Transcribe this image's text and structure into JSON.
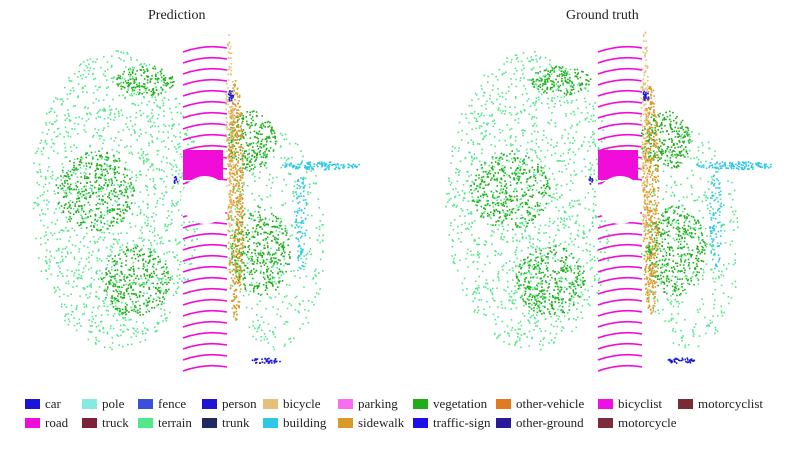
{
  "titles": {
    "left": "Prediction",
    "right": "Ground truth"
  },
  "legend": [
    {
      "label": "car",
      "color": "#1a13d9"
    },
    {
      "label": "pole",
      "color": "#85ebe0"
    },
    {
      "label": "fence",
      "color": "#3a4fdc"
    },
    {
      "label": "person",
      "color": "#1e14d2"
    },
    {
      "label": "bicycle",
      "color": "#e6c07a"
    },
    {
      "label": "parking",
      "color": "#f86ef0"
    },
    {
      "label": "vegetation",
      "color": "#1fae1a"
    },
    {
      "label": "other-vehicle",
      "color": "#e07b22"
    },
    {
      "label": "bicyclist",
      "color": "#f00ee6"
    },
    {
      "label": "motorcyclist",
      "color": "#7a2a33"
    },
    {
      "label": "road",
      "color": "#f00cd9"
    },
    {
      "label": "truck",
      "color": "#7d2139"
    },
    {
      "label": "terrain",
      "color": "#52e88a"
    },
    {
      "label": "trunk",
      "color": "#202a5e"
    },
    {
      "label": "building",
      "color": "#2ec7e6"
    },
    {
      "label": "sidewalk",
      "color": "#d99a2a"
    },
    {
      "label": "traffic-sign",
      "color": "#1d10ea"
    },
    {
      "label": "other-ground",
      "color": "#2a1a9a"
    },
    {
      "label": "motorcycle",
      "color": "#7d2a3a"
    }
  ]
}
